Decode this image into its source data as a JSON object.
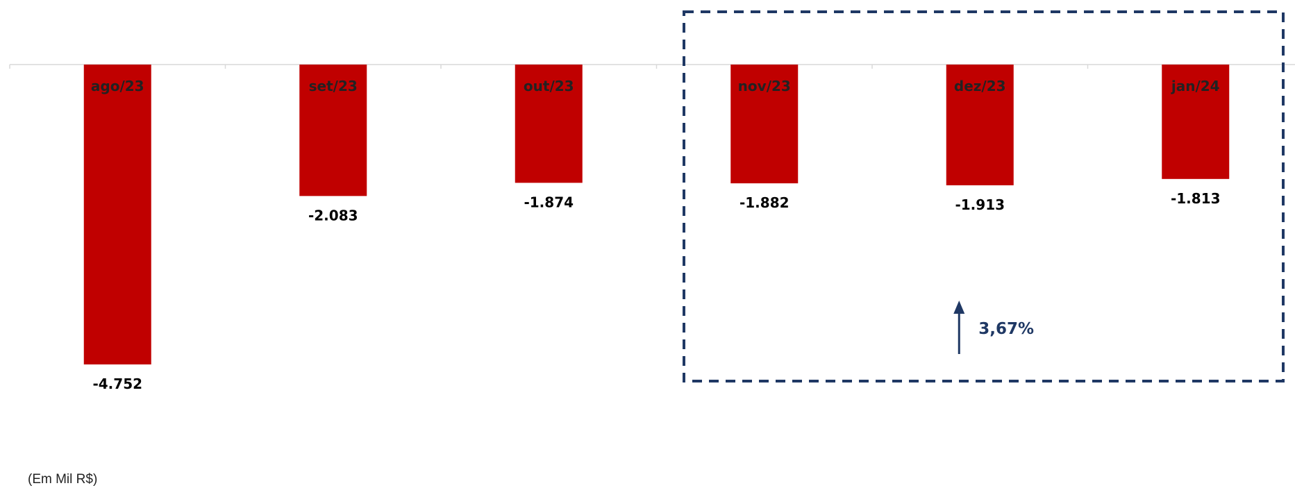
{
  "chart_data": {
    "type": "bar",
    "categories": [
      "ago/23",
      "set/23",
      "out/23",
      "nov/23",
      "dez/23",
      "jan/24"
    ],
    "values": [
      -4752,
      -2083,
      -1874,
      -1882,
      -1913,
      -1813
    ],
    "value_labels": [
      "-4.752",
      "-2.083",
      "-1.874",
      "-1.882",
      "-1.913",
      "-1.813"
    ],
    "title": "",
    "xlabel": "",
    "ylabel": "",
    "ylim": [
      -4752,
      0
    ],
    "grid": false,
    "legend": "none",
    "highlight": {
      "from_category": "nov/23",
      "to_category": "jan/24",
      "label": "3,67%",
      "direction": "up"
    }
  },
  "unit_note": "(Em Mil R$)",
  "colors": {
    "bar": "#C00000",
    "category_label": "#222222",
    "value_label": "#000000",
    "highlight": "#1F3864",
    "axis": "#D9D9D9"
  }
}
